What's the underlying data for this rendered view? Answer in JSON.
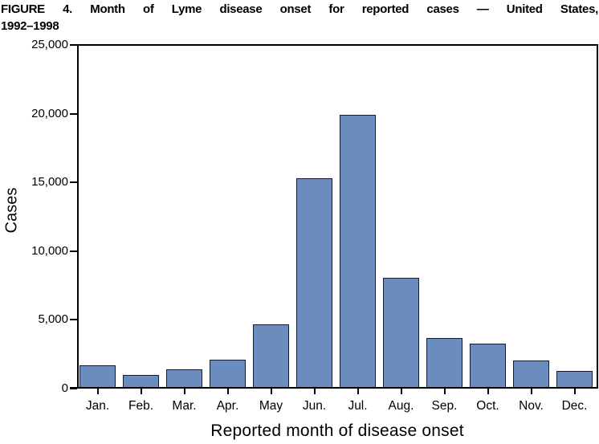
{
  "figure": {
    "title_line1": "FIGURE 4. Month of Lyme disease onset for reported cases — United States,",
    "title_line2": "1992–1998"
  },
  "chart_data": {
    "type": "bar",
    "title": "FIGURE 4. Month of Lyme disease onset for reported cases — United States, 1992–1998",
    "xlabel": "Reported month of disease onset",
    "ylabel": "Cases",
    "categories": [
      "Jan.",
      "Feb.",
      "Mar.",
      "Apr.",
      "May",
      "Jun.",
      "Jul.",
      "Aug.",
      "Sep.",
      "Oct.",
      "Nov.",
      "Dec."
    ],
    "values": [
      1700,
      1000,
      1400,
      2100,
      4700,
      15300,
      19900,
      8050,
      3700,
      3250,
      2050,
      1300
    ],
    "ylim": [
      0,
      25000
    ],
    "ytick_interval": 5000,
    "ytick_labels": [
      "0",
      "5,000",
      "10,000",
      "15,000",
      "20,000",
      "25,000"
    ],
    "grid": false,
    "legend": "none",
    "colors": {
      "bar_fill": "#6b8cbe",
      "bar_border": "#161a33",
      "axis": "#000000",
      "background": "#ffffff",
      "text": "#000000"
    }
  }
}
